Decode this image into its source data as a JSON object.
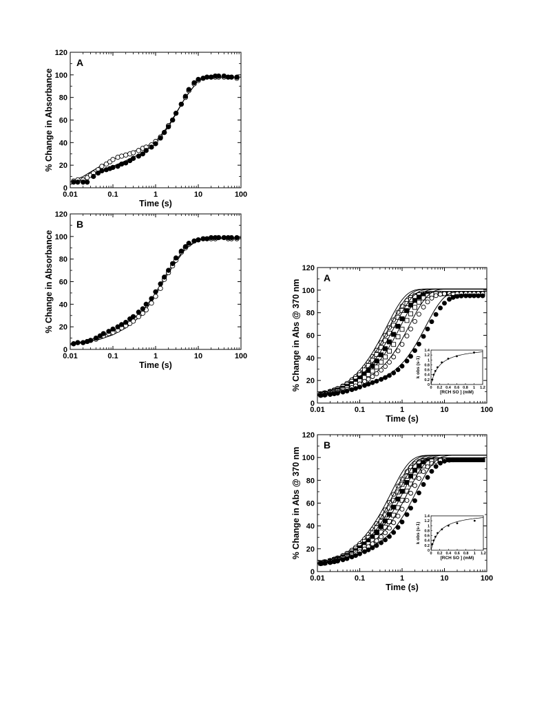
{
  "chart_data": [
    {
      "id": "left-A",
      "type": "scatter",
      "panel_label": "A",
      "xlabel": "Time (s)",
      "ylabel": "% Change in Absorbance",
      "xscale": "log",
      "xlim": [
        0.01,
        100
      ],
      "ylim": [
        0,
        120
      ],
      "xticks": [
        "0.01",
        "0.1",
        "1",
        "10",
        "100"
      ],
      "yticks": [
        "0",
        "20",
        "40",
        "60",
        "80",
        "100",
        "120"
      ],
      "grid": false,
      "legend": "none",
      "series": [
        {
          "marker": "open-circle",
          "x": [
            0.012,
            0.015,
            0.02,
            0.025,
            0.03,
            0.035,
            0.045,
            0.055,
            0.07,
            0.085,
            0.1,
            0.13,
            0.16,
            0.2,
            0.25,
            0.3,
            0.4,
            0.5,
            0.6,
            0.8,
            1,
            1.3,
            1.6,
            2,
            2.5,
            3,
            4,
            5,
            6,
            8,
            10,
            13,
            16,
            20,
            25,
            30,
            40,
            50,
            60,
            80
          ],
          "y": [
            6,
            7,
            7,
            9,
            11,
            13,
            16,
            19,
            21,
            23,
            25,
            27,
            28,
            29,
            30,
            31,
            33,
            35,
            36,
            38,
            41,
            45,
            49,
            55,
            60,
            66,
            74,
            80,
            86,
            92,
            95,
            97,
            98,
            98,
            98,
            98,
            98,
            98,
            98,
            97
          ]
        },
        {
          "marker": "filled-circle",
          "x": [
            0.012,
            0.015,
            0.02,
            0.025,
            0.035,
            0.045,
            0.055,
            0.07,
            0.085,
            0.1,
            0.13,
            0.16,
            0.2,
            0.25,
            0.3,
            0.4,
            0.5,
            0.6,
            0.8,
            1,
            1.3,
            1.6,
            2,
            2.5,
            3,
            4,
            5,
            6,
            8,
            10,
            13,
            16,
            20,
            25,
            30,
            40,
            50,
            60,
            80
          ],
          "y": [
            5,
            5,
            5,
            5,
            10,
            13,
            15,
            16,
            17,
            18,
            19,
            21,
            22,
            24,
            26,
            28,
            30,
            33,
            36,
            39,
            44,
            49,
            54,
            60,
            66,
            74,
            81,
            87,
            93,
            96,
            97,
            98,
            98,
            99,
            99,
            99,
            98,
            98,
            98
          ]
        }
      ],
      "fits": [
        {
          "x": [
            0.01,
            0.02,
            0.05,
            0.1,
            0.2,
            0.5,
            1,
            2,
            5,
            10,
            20,
            50,
            100
          ],
          "y": [
            5,
            10,
            19,
            25,
            30,
            35,
            41,
            55,
            80,
            95,
            98,
            98,
            98
          ]
        },
        {
          "x": [
            0.01,
            0.02,
            0.05,
            0.1,
            0.2,
            0.5,
            1,
            2,
            5,
            10,
            20,
            50,
            100
          ],
          "y": [
            3,
            7,
            14,
            19,
            24,
            31,
            39,
            54,
            80,
            95,
            98,
            98,
            98
          ]
        }
      ]
    },
    {
      "id": "left-B",
      "type": "scatter",
      "panel_label": "B",
      "xlabel": "Time (s)",
      "ylabel": "% Change in Absorbance",
      "xscale": "log",
      "xlim": [
        0.01,
        100
      ],
      "ylim": [
        0,
        120
      ],
      "xticks": [
        "0.01",
        "0.1",
        "1",
        "10",
        "100"
      ],
      "yticks": [
        "0",
        "20",
        "40",
        "60",
        "80",
        "100",
        "120"
      ],
      "grid": false,
      "legend": "none",
      "series": [
        {
          "marker": "open-circle",
          "x": [
            0.012,
            0.015,
            0.02,
            0.025,
            0.03,
            0.04,
            0.05,
            0.06,
            0.08,
            0.1,
            0.13,
            0.16,
            0.2,
            0.25,
            0.3,
            0.4,
            0.5,
            0.6,
            0.8,
            1,
            1.3,
            1.6,
            2,
            2.5,
            3,
            4,
            5,
            6,
            8,
            10,
            13,
            16,
            20,
            25,
            30,
            40,
            50,
            60,
            80
          ],
          "y": [
            5,
            6,
            6,
            7,
            8,
            9,
            11,
            12,
            14,
            15,
            17,
            19,
            21,
            23,
            25,
            29,
            32,
            35,
            41,
            47,
            54,
            62,
            68,
            74,
            79,
            86,
            90,
            93,
            96,
            97,
            98,
            98,
            98,
            98,
            99,
            99,
            98,
            98,
            98
          ]
        },
        {
          "marker": "filled-circle",
          "x": [
            0.012,
            0.015,
            0.02,
            0.025,
            0.03,
            0.04,
            0.05,
            0.06,
            0.08,
            0.1,
            0.13,
            0.16,
            0.2,
            0.25,
            0.3,
            0.4,
            0.5,
            0.6,
            0.8,
            1,
            1.3,
            1.6,
            2,
            2.5,
            3,
            4,
            5,
            6,
            8,
            10,
            13,
            16,
            20,
            25,
            30,
            40,
            50,
            60,
            80
          ],
          "y": [
            5,
            6,
            6,
            7,
            8,
            10,
            12,
            14,
            16,
            18,
            20,
            22,
            24,
            27,
            29,
            33,
            36,
            40,
            45,
            51,
            58,
            64,
            70,
            76,
            81,
            87,
            91,
            94,
            96,
            97,
            98,
            98,
            99,
            99,
            99,
            99,
            99,
            99,
            99
          ]
        }
      ],
      "fits": [
        {
          "x": [
            0.01,
            0.02,
            0.05,
            0.1,
            0.2,
            0.5,
            1,
            2,
            5,
            10,
            20,
            50,
            100
          ],
          "y": [
            5,
            7,
            11,
            16,
            22,
            34,
            50,
            70,
            90,
            97,
            98,
            98,
            98
          ]
        },
        {
          "x": [
            0.01,
            0.02,
            0.05,
            0.1,
            0.2,
            0.5,
            1,
            2,
            5,
            10,
            20,
            50,
            100
          ],
          "y": [
            4,
            6,
            9,
            13,
            19,
            31,
            48,
            68,
            89,
            97,
            99,
            99,
            99
          ]
        }
      ]
    },
    {
      "id": "right-A",
      "type": "scatter",
      "panel_label": "A",
      "xlabel": "Time (s)",
      "ylabel": "% Change in Abs @ 370 nm",
      "xscale": "log",
      "xlim": [
        0.01,
        100
      ],
      "ylim": [
        0,
        120
      ],
      "xticks": [
        "0.01",
        "0.1",
        "1",
        "10",
        "100"
      ],
      "yticks": [
        "0",
        "20",
        "40",
        "60",
        "80",
        "100",
        "120"
      ],
      "grid": false,
      "legend": "none",
      "series": [
        {
          "marker": "open-circle",
          "k": 2.0,
          "amp": 92
        },
        {
          "marker": "open-square",
          "k": 1.7,
          "amp": 92
        },
        {
          "marker": "filled-square",
          "k": 1.3,
          "amp": 92
        },
        {
          "marker": "open-square",
          "k": 0.95,
          "amp": 92
        },
        {
          "marker": "open-circle",
          "k": 0.6,
          "amp": 92
        },
        {
          "marker": "filled-circle",
          "k": 0.25,
          "amp": 90
        }
      ],
      "inset": {
        "xlabel": "[RCH SO ] (mM)",
        "ylabel": "k obs (s-1)",
        "xlim": [
          0,
          1.2
        ],
        "ylim": [
          0,
          1.4
        ],
        "xticks": [
          "0",
          "0.2",
          "0.4",
          "0.6",
          "0.8",
          "1",
          "1.2"
        ],
        "yticks": [
          "0",
          "0.2",
          "0.4",
          "0.6",
          "0.8",
          "1",
          "1.2",
          "1.4"
        ],
        "points": {
          "x": [
            0.03,
            0.06,
            0.1,
            0.15,
            0.25,
            0.4,
            0.6,
            1.0
          ],
          "y": [
            0.2,
            0.4,
            0.55,
            0.7,
            0.9,
            1.05,
            1.15,
            1.3
          ]
        }
      }
    },
    {
      "id": "right-B",
      "type": "scatter",
      "panel_label": "B",
      "xlabel": "Time (s)",
      "ylabel": "% Change in Abs @ 370 nm",
      "xscale": "log",
      "xlim": [
        0.01,
        100
      ],
      "ylim": [
        0,
        120
      ],
      "xticks": [
        "0.01",
        "0.1",
        "1",
        "10",
        "100"
      ],
      "yticks": [
        "0",
        "20",
        "40",
        "60",
        "80",
        "100",
        "120"
      ],
      "grid": false,
      "legend": "none",
      "series": [
        {
          "marker": "open-circle",
          "k": 1.6,
          "amp": 93
        },
        {
          "marker": "open-square",
          "k": 1.35,
          "amp": 93
        },
        {
          "marker": "filled-square",
          "k": 1.1,
          "amp": 93
        },
        {
          "marker": "open-square",
          "k": 0.85,
          "amp": 93
        },
        {
          "marker": "open-circle",
          "k": 0.65,
          "amp": 93
        },
        {
          "marker": "filled-circle",
          "k": 0.42,
          "amp": 93
        }
      ],
      "inset": {
        "xlabel": "[RCH SO ] (mM)",
        "ylabel": "k obs (s-1)",
        "xlim": [
          0,
          1.2
        ],
        "ylim": [
          0,
          1.4
        ],
        "xticks": [
          "0",
          "0.2",
          "0.4",
          "0.6",
          "0.8",
          "1",
          "1.2"
        ],
        "yticks": [
          "0",
          "0.2",
          "0.4",
          "0.6",
          "0.8",
          "1",
          "1.2",
          "1.4"
        ],
        "points": {
          "x": [
            0.03,
            0.06,
            0.1,
            0.15,
            0.25,
            0.4,
            0.6,
            1.0
          ],
          "y": [
            0.25,
            0.4,
            0.55,
            0.7,
            0.85,
            1.0,
            1.1,
            1.2
          ]
        }
      }
    }
  ]
}
